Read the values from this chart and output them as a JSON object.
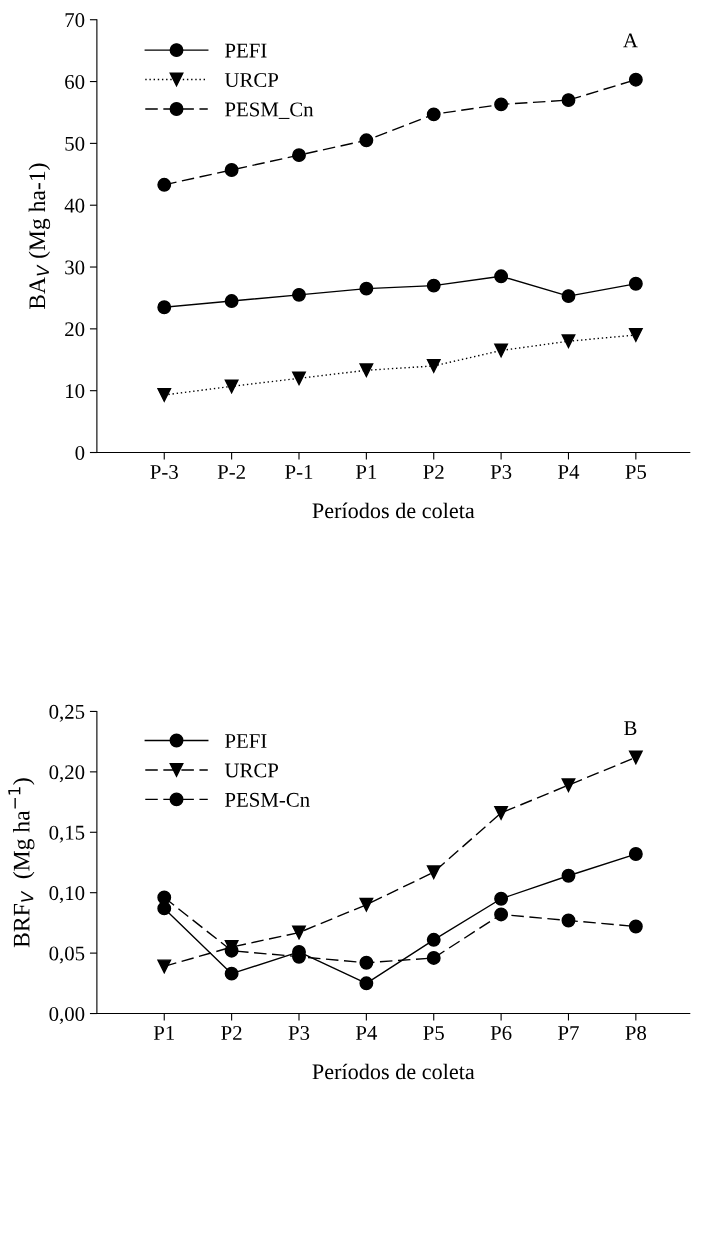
{
  "chart_data": [
    {
      "type": "line",
      "xlabel": "Períodos de coleta",
      "ylabel": "BA$_{V}$ (Mg ha-1)",
      "annotations": [
        "A"
      ],
      "categories": [
        "P-3",
        "P-2",
        "P-1",
        "P1",
        "P2",
        "P3",
        "P4",
        "P5"
      ],
      "ylim": [
        0,
        70
      ],
      "yticks": [
        0,
        10,
        20,
        30,
        40,
        50,
        60,
        70
      ],
      "grid": false,
      "legend": "top left",
      "series": [
        {
          "name": "PEFI",
          "color": "#000000",
          "marker": "circle",
          "line_style": "solid",
          "values": [
            23.5,
            24.5,
            25.5,
            26.5,
            27.0,
            28.5,
            25.3,
            27.3
          ]
        },
        {
          "name": "URCP",
          "color": "#000000",
          "marker": "triangle",
          "line_style": "dotted",
          "values": [
            9.3,
            10.7,
            12.0,
            13.3,
            14.0,
            16.5,
            18.0,
            19.0
          ]
        },
        {
          "name": "PESM_Cn",
          "color": "#000000",
          "marker": "circle",
          "line_style": "dashed",
          "values": [
            43.3,
            45.7,
            48.1,
            50.5,
            54.7,
            56.3,
            57.0,
            60.3
          ]
        }
      ]
    },
    {
      "type": "line",
      "xlabel": "Períodos de coleta",
      "ylabel": "BRF$_{V}$  (Mg ha$^{−1}$)",
      "annotations": [
        "B"
      ],
      "categories": [
        "P1",
        "P2",
        "P3",
        "P4",
        "P5",
        "P6",
        "P7",
        "P8"
      ],
      "ylim": [
        0,
        0.25
      ],
      "yticks": [
        {
          "value": 0,
          "label": "0,00"
        },
        {
          "value": 0.05,
          "label": "0,05"
        },
        {
          "value": 0.1,
          "label": "0,10"
        },
        {
          "value": 0.15,
          "label": "0,15"
        },
        {
          "value": 0.2,
          "label": "0,20"
        },
        {
          "value": 0.25,
          "label": "0,25"
        }
      ],
      "grid": false,
      "legend": "top left",
      "series": [
        {
          "name": "PEFI",
          "color": "#000000",
          "marker": "circle",
          "line_style": "solid",
          "values": [
            0.087,
            0.033,
            0.051,
            0.025,
            0.061,
            0.095,
            0.114,
            0.132
          ]
        },
        {
          "name": "URCP",
          "color": "#000000",
          "marker": "triangle",
          "line_style": "dashed",
          "values": [
            0.039,
            0.055,
            0.067,
            0.09,
            0.117,
            0.166,
            0.189,
            0.212
          ]
        },
        {
          "name": "PESM-Cn",
          "color": "#000000",
          "marker": "circle",
          "line_style": "dashed",
          "values": [
            0.096,
            0.052,
            0.047,
            0.042,
            0.046,
            0.082,
            0.077,
            0.072
          ]
        }
      ]
    }
  ]
}
